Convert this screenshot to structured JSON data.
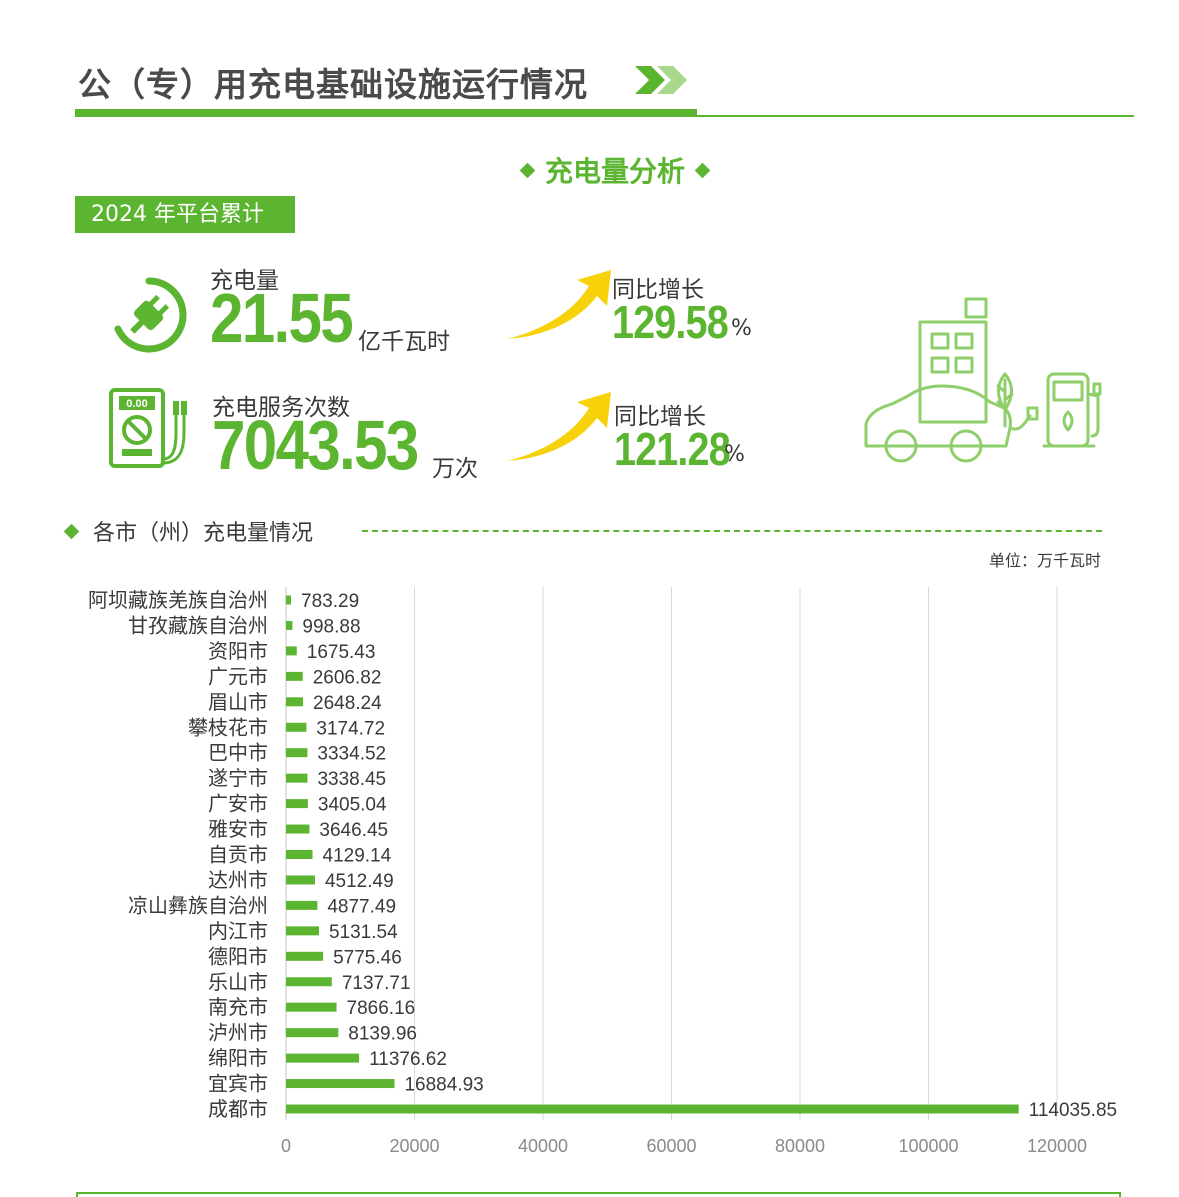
{
  "header": {
    "title": "公（专）用充电基础设施运行情况"
  },
  "section": {
    "title": "充电量分析"
  },
  "badge": {
    "label": "2024 年平台累计"
  },
  "stats": {
    "energy": {
      "label": "充电量",
      "value": "21.55",
      "unit": "亿千瓦时",
      "yoy_label": "同比增长",
      "yoy_value": "129.58",
      "yoy_unit": "%"
    },
    "sessions": {
      "label": "充电服务次数",
      "value": "7043.53",
      "unit": "万次",
      "yoy_label": "同比增长",
      "yoy_value": "121.28",
      "yoy_unit": "%"
    }
  },
  "icons": {
    "plug": "plug-icon",
    "meter": "multimeter-icon",
    "meter_display": "0.00",
    "arrow": "up-arrow-icon",
    "illustration": "ev-charging-illustration"
  },
  "subsection": {
    "title": "各市（州）充电量情况",
    "unit": "单位：万千瓦时"
  },
  "colors": {
    "accent": "#5cb531",
    "arrow": "#f7d20a",
    "text": "#3a3a3a",
    "grid": "#d9d9d9"
  },
  "chart_data": {
    "type": "bar",
    "orientation": "horizontal",
    "categories": [
      "阿坝藏族羌族自治州",
      "甘孜藏族自治州",
      "资阳市",
      "广元市",
      "眉山市",
      "攀枝花市",
      "巴中市",
      "遂宁市",
      "广安市",
      "雅安市",
      "自贡市",
      "达州市",
      "凉山彝族自治州",
      "内江市",
      "德阳市",
      "乐山市",
      "南充市",
      "泸州市",
      "绵阳市",
      "宜宾市",
      "成都市"
    ],
    "values": [
      783.29,
      998.88,
      1675.43,
      2606.82,
      2648.24,
      3174.72,
      3334.52,
      3338.45,
      3405.04,
      3646.45,
      4129.14,
      4512.49,
      4877.49,
      5131.54,
      5775.46,
      7137.71,
      7866.16,
      8139.96,
      11376.62,
      16884.93,
      114035.85
    ],
    "value_labels": [
      "783.29",
      "998.88",
      "1675.43",
      "2606.82",
      "2648.24",
      "3174.72",
      "3334.52",
      "3338.45",
      "3405.04",
      "3646.45",
      "4129.14",
      "4512.49",
      "4877.49",
      "5131.54",
      "5775.46",
      "7137.71",
      "7866.16",
      "8139.96",
      "11376.62",
      "16884.93",
      "114035.85"
    ],
    "xlim": [
      0,
      120000
    ],
    "xticks": [
      "0",
      "20000",
      "40000",
      "60000",
      "80000",
      "100000",
      "120000"
    ],
    "grid": "vertical",
    "title": "",
    "xlabel": "",
    "ylabel": ""
  }
}
